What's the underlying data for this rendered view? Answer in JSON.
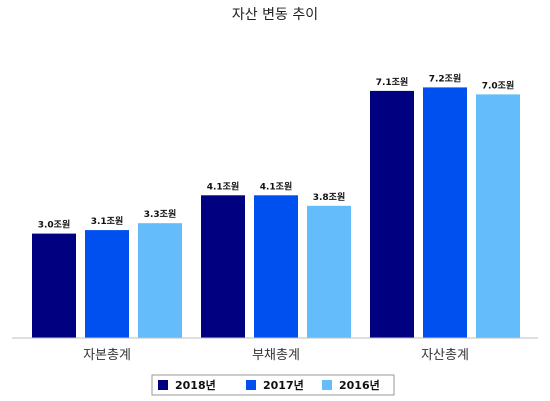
{
  "chart_data": {
    "type": "bar",
    "title": "자산 변동 추이",
    "categories": [
      "자본총계",
      "부채총계",
      "자산총계"
    ],
    "series": [
      {
        "name": "2018년",
        "color": "#000080",
        "values": [
          3.0,
          4.1,
          7.1
        ],
        "labels": [
          "3.0조원",
          "4.1조원",
          "7.1조원"
        ]
      },
      {
        "name": "2017년",
        "color": "#0050F0",
        "values": [
          3.1,
          4.1,
          7.2
        ],
        "labels": [
          "3.1조원",
          "4.1조원",
          "7.2조원"
        ]
      },
      {
        "name": "2016년",
        "color": "#64BCFA",
        "values": [
          3.3,
          3.8,
          7.0
        ],
        "labels": [
          "3.3조원",
          "3.8조원",
          "7.0조원"
        ]
      }
    ],
    "unit": "조원",
    "ylim": [
      0,
      8
    ],
    "grid": false,
    "legend": "bottom"
  }
}
